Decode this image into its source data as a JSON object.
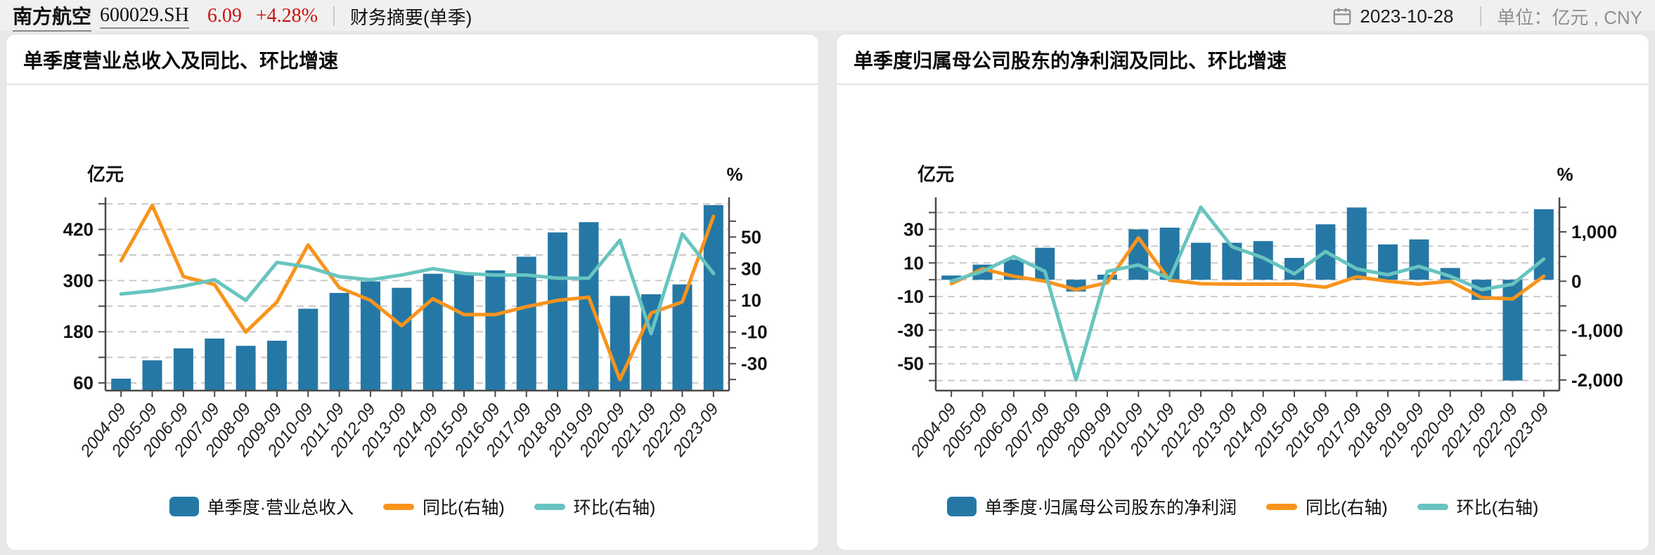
{
  "header": {
    "stock_name": "南方航空",
    "stock_code": "600029.SH",
    "price": "6.09",
    "change": "+4.28%",
    "section": "财务摘要(单季)",
    "date": "2023-10-28",
    "unit_label": "单位：",
    "unit_value": "亿元 , CNY",
    "accent_red": "#cc1111"
  },
  "chart_data": [
    {
      "type": "bar",
      "title": "单季度营业总收入及同比、环比增速",
      "categories": [
        "2004-09",
        "2005-09",
        "2006-09",
        "2007-09",
        "2008-09",
        "2009-09",
        "2010-09",
        "2011-09",
        "2012-09",
        "2013-09",
        "2014-09",
        "2015-09",
        "2016-09",
        "2017-09",
        "2018-09",
        "2019-09",
        "2020-09",
        "2021-09",
        "2022-09",
        "2023-09"
      ],
      "left_axis": {
        "name": "亿元",
        "min": 42,
        "max": 495,
        "tick_values": [
          60,
          120,
          180,
          240,
          300,
          360,
          420,
          480
        ],
        "labeled_ticks": [
          [
            60,
            "60"
          ],
          [
            180,
            "180"
          ],
          [
            300,
            "300"
          ],
          [
            420,
            "420"
          ]
        ]
      },
      "right_axis": {
        "name": "%",
        "min": -47,
        "max": 75,
        "tick_values": [
          -40,
          -30,
          -20,
          -10,
          0,
          10,
          20,
          30,
          40,
          50,
          60
        ],
        "labeled_ticks": [
          [
            50,
            "50"
          ],
          [
            30,
            "30"
          ],
          [
            10,
            "10"
          ],
          [
            -10,
            "-10"
          ],
          [
            -30,
            "-30"
          ]
        ]
      },
      "bar": {
        "name": "单季度·营业总收入",
        "color": "#2578a5",
        "axis": "left",
        "values": [
          70,
          113,
          141,
          164,
          147,
          159,
          234,
          271,
          298,
          283,
          316,
          318,
          324,
          356,
          413,
          437,
          264,
          268,
          291,
          477
        ]
      },
      "lines": [
        {
          "name": "同比(右轴)",
          "color": "#f8941d",
          "axis": "right",
          "values": [
            35,
            70,
            25,
            20,
            -10,
            9,
            45,
            18,
            10,
            -6,
            11,
            1,
            1,
            6,
            10,
            12,
            -40,
            2,
            9,
            63
          ]
        },
        {
          "name": "环比(右轴)",
          "color": "#68c4bf",
          "axis": "right",
          "values": [
            14,
            16,
            19,
            23,
            10,
            34,
            31,
            25,
            23,
            26,
            30,
            27,
            26,
            26,
            24,
            24,
            48,
            -11,
            52,
            27
          ]
        }
      ],
      "grid": "dashed",
      "legend_position": "bottom"
    },
    {
      "type": "bar",
      "title": "单季度归属母公司股东的净利润及同比、环比增速",
      "categories": [
        "2004-09",
        "2005-09",
        "2006-09",
        "2007-09",
        "2008-09",
        "2009-09",
        "2010-09",
        "2011-09",
        "2012-09",
        "2013-09",
        "2014-09",
        "2015-09",
        "2016-09",
        "2017-09",
        "2018-09",
        "2019-09",
        "2020-09",
        "2021-09",
        "2022-09",
        "2023-09"
      ],
      "left_axis": {
        "name": "亿元",
        "min": -66,
        "max": 49,
        "tick_values": [
          -60,
          -50,
          -40,
          -30,
          -20,
          -10,
          0,
          10,
          20,
          30,
          40
        ],
        "labeled_ticks": [
          [
            30,
            "30"
          ],
          [
            10,
            "10"
          ],
          [
            -10,
            "-10"
          ],
          [
            -30,
            "-30"
          ],
          [
            -50,
            "-50"
          ]
        ]
      },
      "right_axis": {
        "name": "%",
        "min": -2216,
        "max": 1698,
        "tick_values": [
          -2000,
          -1500,
          -1000,
          -500,
          0,
          500,
          1000,
          1500
        ],
        "labeled_ticks": [
          [
            1000,
            "1,000"
          ],
          [
            0,
            "0"
          ],
          [
            -1000,
            "-1,000"
          ],
          [
            -2000,
            "-2,000"
          ]
        ]
      },
      "bar": {
        "name": "单季度·归属母公司股东的净利润",
        "color": "#2578a5",
        "axis": "left",
        "values": [
          2.5,
          9,
          12,
          19,
          -7,
          3,
          30,
          31,
          22,
          22,
          23,
          13,
          33,
          43,
          21,
          24,
          7,
          -12,
          -60,
          42
        ]
      },
      "lines": [
        {
          "name": "同比(右轴)",
          "color": "#f8941d",
          "axis": "right",
          "values": [
            -50,
            250,
            100,
            0,
            -170,
            -30,
            880,
            20,
            -50,
            -60,
            -60,
            -60,
            -120,
            90,
            0,
            -60,
            0,
            -330,
            -360,
            100
          ]
        },
        {
          "name": "环比(右轴)",
          "color": "#68c4bf",
          "axis": "right",
          "values": [
            0,
            200,
            500,
            200,
            -2000,
            200,
            330,
            50,
            1500,
            700,
            475,
            150,
            600,
            250,
            130,
            300,
            100,
            -170,
            -60,
            450
          ]
        }
      ],
      "grid": "dashed",
      "legend_position": "bottom"
    }
  ]
}
